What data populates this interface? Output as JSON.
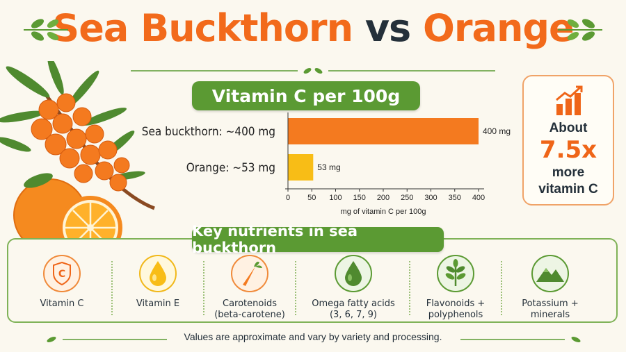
{
  "title": {
    "part1": "Sea Buckthorn",
    "part2": "vs",
    "part3": "Orange"
  },
  "vitamin_c_header": "Vitamin C per 100g",
  "chart_data": {
    "type": "bar",
    "orientation": "horizontal",
    "title": "Vitamin C per 100g",
    "categories": [
      "Sea buckthorn: ~400 mg",
      "Orange: ~53 mg"
    ],
    "values": [
      400,
      53
    ],
    "value_labels": [
      "400 mg",
      "53 mg"
    ],
    "colors": [
      "#f47a1f",
      "#f8bd16"
    ],
    "xlabel": "mg of vitamin C per 100g",
    "ylabel": "",
    "xlim": [
      0,
      400
    ],
    "xticks": [
      0,
      50,
      100,
      150,
      200,
      250,
      300,
      350,
      400
    ],
    "grid": false
  },
  "callout": {
    "line1": "About",
    "multiplier": "7.5x",
    "line2": "more",
    "line3": "vitamin C",
    "icon": "bar-chart-trend-icon"
  },
  "nutrients_header": "Key nutrients in sea buckthorn",
  "nutrients": [
    {
      "label1": "Vitamin C",
      "label2": "",
      "icon": "shield-c-icon"
    },
    {
      "label1": "Vitamin E",
      "label2": "",
      "icon": "oil-drop-icon"
    },
    {
      "label1": "Carotenoids",
      "label2": "(beta-carotene)",
      "icon": "carrot-icon"
    },
    {
      "label1": "Omega fatty acids",
      "label2": "(3, 6, 7, 9)",
      "icon": "droplet-icon"
    },
    {
      "label1": "Flavonoids +",
      "label2": "polyphenols",
      "icon": "plant-icon"
    },
    {
      "label1": "Potassium +",
      "label2": "minerals",
      "icon": "mountain-icon"
    }
  ],
  "footer_note": "Values are approximate and vary by variety and processing.",
  "colors": {
    "orange": "#f26a1b",
    "green": "#5b9a33",
    "dark": "#24303a",
    "yellow": "#f8bd16",
    "background": "#fbf8ef"
  }
}
